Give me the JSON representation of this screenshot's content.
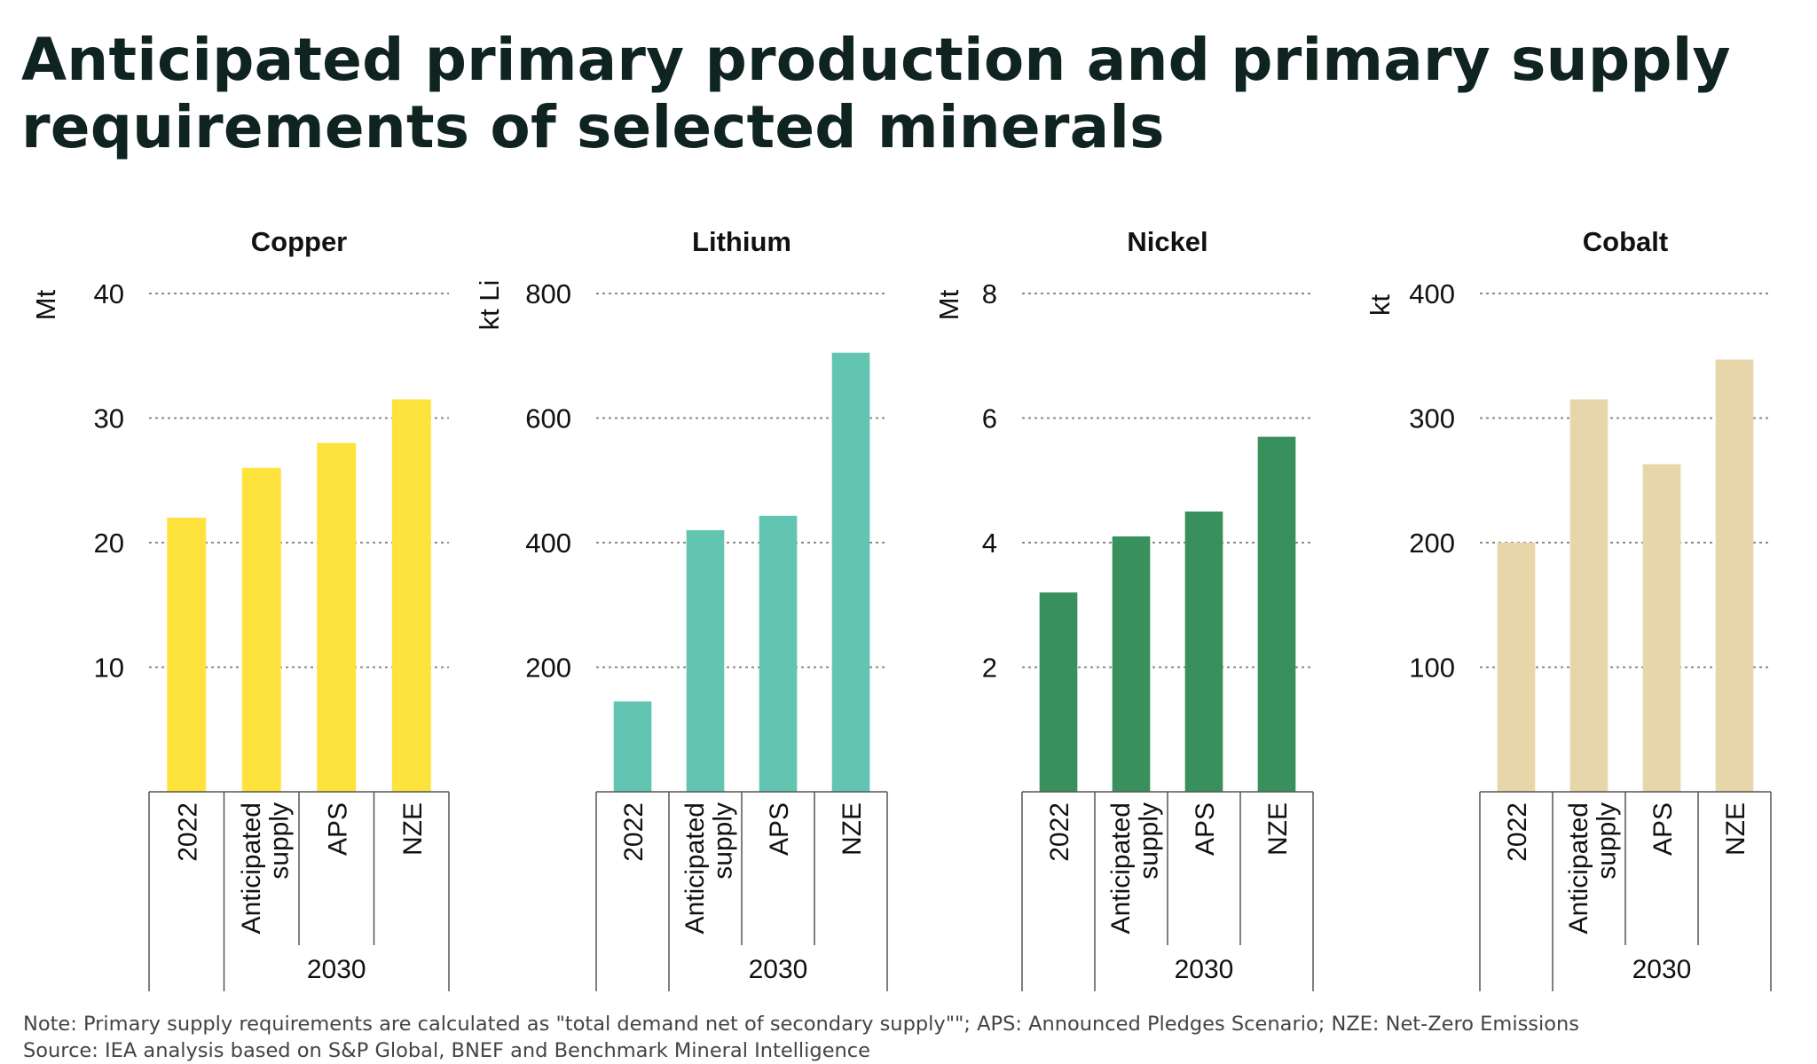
{
  "title": "Anticipated primary production and primary supply requirements of selected minerals",
  "note": "Note: Primary supply requirements are calculated as \"total demand net of secondary supply\"\"; APS: Announced Pledges Scenario; NZE: Net-Zero Emissions",
  "source": "Source: IEA analysis based on S&P Global, BNEF and Benchmark Mineral Intelligence",
  "chart_data": [
    {
      "type": "bar",
      "title": "Copper",
      "ylabel": "Mt",
      "categories": [
        "2022",
        "Anticipated supply",
        "APS",
        "NZE"
      ],
      "group_label": "2030",
      "values": [
        22,
        26,
        28,
        31.5
      ],
      "ylim": [
        0,
        40
      ],
      "yticks": [
        10,
        20,
        30,
        40
      ],
      "color": "#fde33c",
      "grid": true
    },
    {
      "type": "bar",
      "title": "Lithium",
      "ylabel": "kt Li",
      "categories": [
        "2022",
        "Anticipated supply",
        "APS",
        "NZE"
      ],
      "group_label": "2030",
      "values": [
        145,
        420,
        443,
        705
      ],
      "ylim": [
        0,
        800
      ],
      "yticks": [
        200,
        400,
        600,
        800
      ],
      "color": "#62c5b2",
      "grid": true
    },
    {
      "type": "bar",
      "title": "Nickel",
      "ylabel": "Mt",
      "categories": [
        "2022",
        "Anticipated supply",
        "APS",
        "NZE"
      ],
      "group_label": "2030",
      "values": [
        3.2,
        4.1,
        4.5,
        5.7
      ],
      "ylim": [
        0,
        8
      ],
      "yticks": [
        2,
        4,
        6,
        8
      ],
      "color": "#38905d",
      "grid": true
    },
    {
      "type": "bar",
      "title": "Cobalt",
      "ylabel": "kt",
      "categories": [
        "2022",
        "Anticipated supply",
        "APS",
        "NZE"
      ],
      "group_label": "2030",
      "values": [
        200,
        315,
        263,
        347
      ],
      "ylim": [
        0,
        400
      ],
      "yticks": [
        100,
        200,
        300,
        400
      ],
      "color": "#e8d6ab",
      "grid": true
    }
  ]
}
